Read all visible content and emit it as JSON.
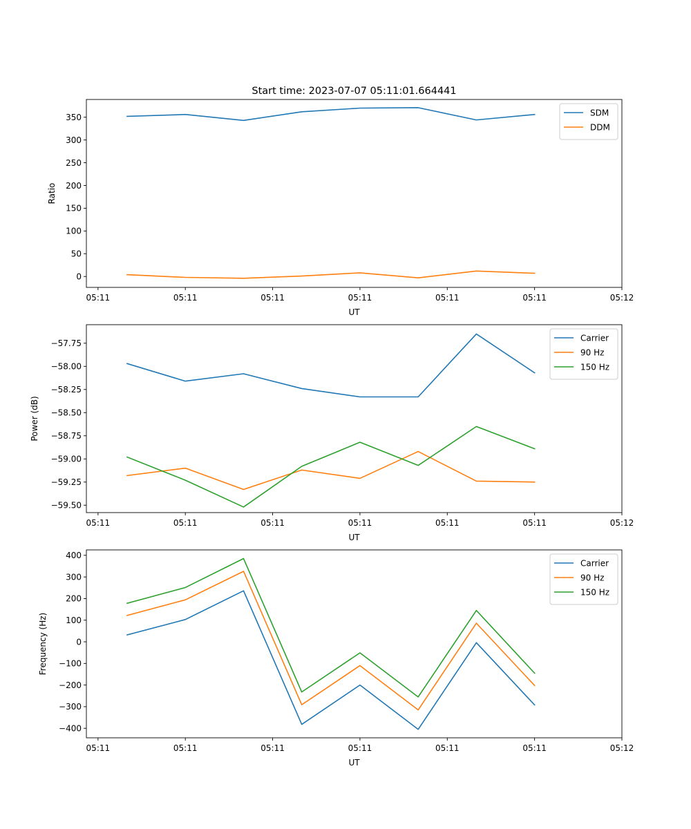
{
  "title": "Start time: 2023-07-07 05:11:01.664441",
  "chart_data": [
    {
      "type": "line",
      "ylabel": "Ratio",
      "xlabel": "UT",
      "x": [
        1,
        2,
        3,
        4,
        5,
        6,
        7,
        8
      ],
      "xlim": [
        0.3,
        9.5
      ],
      "ylim": [
        -24,
        389
      ],
      "xticks": [
        0.5,
        2,
        3.5,
        5,
        6.5,
        8,
        9.5
      ],
      "xticklabels": [
        "05:11",
        "05:11",
        "05:11",
        "05:11",
        "05:11",
        "05:11",
        "05:12"
      ],
      "yticks": [
        0,
        50,
        100,
        150,
        200,
        250,
        300,
        350
      ],
      "yticklabels": [
        "0",
        "50",
        "100",
        "150",
        "200",
        "250",
        "300",
        "350"
      ],
      "legend_position": "top-right",
      "series": [
        {
          "name": "SDM",
          "color": "#1f77b4",
          "values": [
            352,
            356,
            343,
            362,
            370,
            371,
            344,
            356
          ]
        },
        {
          "name": "DDM",
          "color": "#ff7f0e",
          "values": [
            4,
            -2,
            -4,
            1,
            8,
            -3,
            12,
            7
          ]
        }
      ]
    },
    {
      "type": "line",
      "ylabel": "Power (dB)",
      "xlabel": "UT",
      "x": [
        1,
        2,
        3,
        4,
        5,
        6,
        7,
        8
      ],
      "xlim": [
        0.3,
        9.5
      ],
      "ylim": [
        -59.58,
        -57.55
      ],
      "xticks": [
        0.5,
        2,
        3.5,
        5,
        6.5,
        8,
        9.5
      ],
      "xticklabels": [
        "05:11",
        "05:11",
        "05:11",
        "05:11",
        "05:11",
        "05:11",
        "05:12"
      ],
      "yticks": [
        -59.5,
        -59.25,
        -59.0,
        -58.75,
        -58.5,
        -58.25,
        -58.0,
        -57.75
      ],
      "yticklabels": [
        "−59.50",
        "−59.25",
        "−59.00",
        "−58.75",
        "−58.50",
        "−58.25",
        "−58.00",
        "−57.75"
      ],
      "legend_position": "top-right",
      "series": [
        {
          "name": "Carrier",
          "color": "#1f77b4",
          "values": [
            -57.97,
            -58.16,
            -58.08,
            -58.24,
            -58.33,
            -58.33,
            -57.65,
            -58.07
          ]
        },
        {
          "name": "90 Hz",
          "color": "#ff7f0e",
          "values": [
            -59.18,
            -59.1,
            -59.33,
            -59.12,
            -59.21,
            -58.92,
            -59.24,
            -59.25
          ]
        },
        {
          "name": "150 Hz",
          "color": "#2ca02c",
          "values": [
            -58.98,
            -59.23,
            -59.52,
            -59.08,
            -58.82,
            -59.07,
            -58.65,
            -58.89
          ]
        }
      ]
    },
    {
      "type": "line",
      "ylabel": "Frequency (Hz)",
      "xlabel": "UT",
      "x": [
        1,
        2,
        3,
        4,
        5,
        6,
        7,
        8
      ],
      "xlim": [
        0.3,
        9.5
      ],
      "ylim": [
        -444,
        425
      ],
      "xticks": [
        0.5,
        2,
        3.5,
        5,
        6.5,
        8,
        9.5
      ],
      "xticklabels": [
        "05:11",
        "05:11",
        "05:11",
        "05:11",
        "05:11",
        "05:11",
        "05:12"
      ],
      "yticks": [
        -400,
        -300,
        -200,
        -100,
        0,
        100,
        200,
        300,
        400
      ],
      "yticklabels": [
        "−400",
        "−300",
        "−200",
        "−100",
        "0",
        "100",
        "200",
        "300",
        "400"
      ],
      "legend_position": "top-right",
      "series": [
        {
          "name": "Carrier",
          "color": "#1f77b4",
          "values": [
            32,
            103,
            236,
            -382,
            -200,
            -405,
            -4,
            -292
          ]
        },
        {
          "name": "90 Hz",
          "color": "#ff7f0e",
          "values": [
            122,
            194,
            326,
            -291,
            -110,
            -315,
            86,
            -202
          ]
        },
        {
          "name": "150 Hz",
          "color": "#2ca02c",
          "values": [
            178,
            251,
            385,
            -232,
            -51,
            -255,
            145,
            -145
          ]
        }
      ]
    }
  ]
}
